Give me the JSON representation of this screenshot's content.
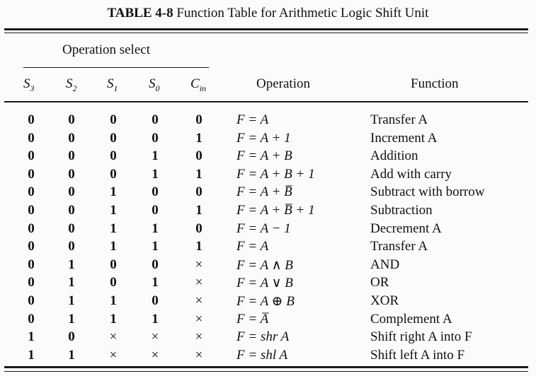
{
  "caption": {
    "label": "TABLE 4-8",
    "title": "Function Table for Arithmetic Logic Shift Unit"
  },
  "group_header": "Operation select",
  "headers": {
    "s3": "S",
    "s3_sub": "3",
    "s2": "S",
    "s2_sub": "2",
    "s1": "S",
    "s1_sub": "1",
    "s0": "S",
    "s0_sub": "0",
    "cin": "C",
    "cin_sub": "in",
    "operation": "Operation",
    "function": "Function"
  },
  "rows": [
    {
      "s3": "0",
      "s2": "0",
      "s1": "0",
      "s0": "0",
      "cin": "0",
      "operation": "F = A",
      "function": "Transfer A"
    },
    {
      "s3": "0",
      "s2": "0",
      "s1": "0",
      "s0": "0",
      "cin": "1",
      "operation": "F = A + 1",
      "function": "Increment A"
    },
    {
      "s3": "0",
      "s2": "0",
      "s1": "0",
      "s0": "1",
      "cin": "0",
      "operation": "F = A + B",
      "function": "Addition"
    },
    {
      "s3": "0",
      "s2": "0",
      "s1": "0",
      "s0": "1",
      "cin": "1",
      "operation": "F = A + B + 1",
      "function": "Add with carry"
    },
    {
      "s3": "0",
      "s2": "0",
      "s1": "1",
      "s0": "0",
      "cin": "0",
      "operation": "F = A + B̅",
      "function": "Subtract with borrow"
    },
    {
      "s3": "0",
      "s2": "0",
      "s1": "1",
      "s0": "0",
      "cin": "1",
      "operation": "F = A + B̅ + 1",
      "function": "Subtraction"
    },
    {
      "s3": "0",
      "s2": "0",
      "s1": "1",
      "s0": "1",
      "cin": "0",
      "operation": "F = A − 1",
      "function": "Decrement A"
    },
    {
      "s3": "0",
      "s2": "0",
      "s1": "1",
      "s0": "1",
      "cin": "1",
      "operation": "F = A",
      "function": "Transfer A"
    },
    {
      "s3": "0",
      "s2": "1",
      "s1": "0",
      "s0": "0",
      "cin": "×",
      "operation": "F = A ∧ B",
      "function": "AND"
    },
    {
      "s3": "0",
      "s2": "1",
      "s1": "0",
      "s0": "1",
      "cin": "×",
      "operation": "F = A ∨ B",
      "function": "OR"
    },
    {
      "s3": "0",
      "s2": "1",
      "s1": "1",
      "s0": "0",
      "cin": "×",
      "operation": "F = A ⊕ B",
      "function": "XOR"
    },
    {
      "s3": "0",
      "s2": "1",
      "s1": "1",
      "s0": "1",
      "cin": "×",
      "operation": "F = A̅",
      "function": "Complement A"
    },
    {
      "s3": "1",
      "s2": "0",
      "s1": "×",
      "s0": "×",
      "cin": "×",
      "operation": "F = shr A",
      "function": "Shift right A into F"
    },
    {
      "s3": "1",
      "s2": "1",
      "s1": "×",
      "s0": "×",
      "cin": "×",
      "operation": "F = shl A",
      "function": "Shift left A into F"
    }
  ]
}
